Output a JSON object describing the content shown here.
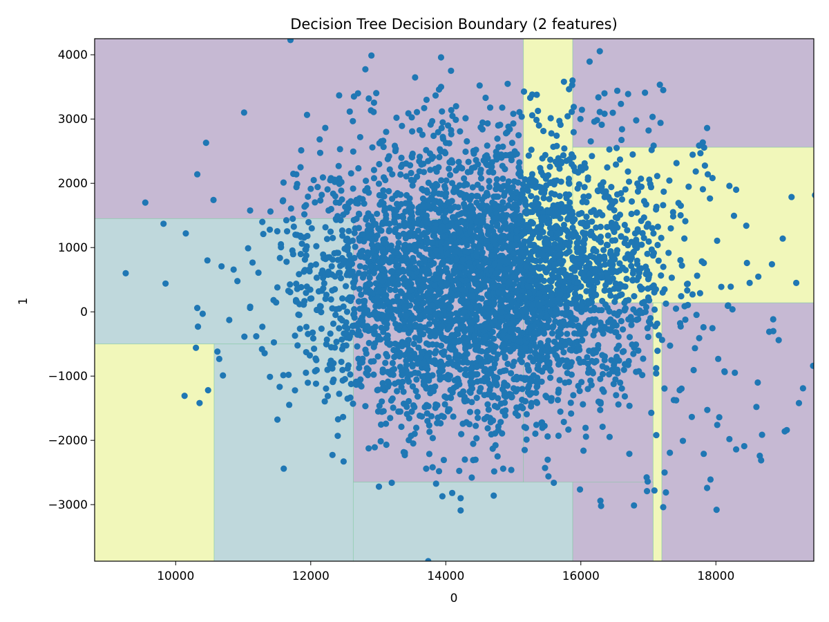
{
  "chart_data": {
    "type": "scatter",
    "title": "Decision Tree Decision Boundary (2 features)",
    "xlabel": "0",
    "ylabel": "1",
    "xlim": [
      8800,
      9450
    ],
    "ylim": [
      -3880,
      4250
    ],
    "x_ticks": [
      10000,
      12000,
      14000,
      16000,
      18000
    ],
    "x_tick_labels": [
      "10000",
      "12000",
      "14000",
      "16000",
      "18000"
    ],
    "y_ticks": [
      -3000,
      -2000,
      -1000,
      0,
      1000,
      2000,
      3000,
      4000
    ],
    "y_tick_labels": [
      "−3000",
      "−2000",
      "−1000",
      "0",
      "1000",
      "2000",
      "3000",
      "4000"
    ],
    "grid": false,
    "legend": "none",
    "colors": {
      "class_0": "#c6b9d3",
      "class_1": "#bfd8dc",
      "class_2": "#f1f7ba",
      "boundary": "#7fc8a0",
      "points": "#1f77b4"
    },
    "regions": [
      {
        "class": 0,
        "x": [
          8800,
          15150
        ],
        "y": [
          1450,
          4250
        ]
      },
      {
        "class": 2,
        "x": [
          15150,
          15880
        ],
        "y": [
          1450,
          4250
        ]
      },
      {
        "class": 0,
        "x": [
          15880,
          19450
        ],
        "y": [
          2560,
          4250
        ]
      },
      {
        "class": 2,
        "x": [
          15880,
          19450
        ],
        "y": [
          140,
          2560
        ]
      },
      {
        "class": 2,
        "x": [
          15150,
          15880
        ],
        "y": [
          140,
          1450
        ]
      },
      {
        "class": 1,
        "x": [
          8800,
          12630
        ],
        "y": [
          -500,
          1450
        ]
      },
      {
        "class": 0,
        "x": [
          12630,
          15150
        ],
        "y": [
          -2650,
          1450
        ]
      },
      {
        "class": 0,
        "x": [
          15150,
          17070
        ],
        "y": [
          -3880,
          140
        ]
      },
      {
        "class": 2,
        "x": [
          17070,
          17200
        ],
        "y": [
          -3880,
          140
        ]
      },
      {
        "class": 0,
        "x": [
          17200,
          19450
        ],
        "y": [
          -3880,
          140
        ]
      },
      {
        "class": 2,
        "x": [
          8800,
          10570
        ],
        "y": [
          -3880,
          -500
        ]
      },
      {
        "class": 1,
        "x": [
          10570,
          12630
        ],
        "y": [
          -3880,
          -500
        ]
      },
      {
        "class": 1,
        "x": [
          12630,
          15880
        ],
        "y": [
          -3880,
          -2650
        ]
      },
      {
        "class": 0,
        "x": [
          15880,
          17070
        ],
        "y": [
          -3880,
          -2650
        ]
      }
    ],
    "cluster": {
      "count": 4200,
      "mean_x": 14550,
      "mean_y": 480,
      "std_x": 1300,
      "std_y": 1050
    },
    "points": [
      [
        9260,
        600
      ],
      [
        9550,
        1700
      ],
      [
        9820,
        1370
      ],
      [
        9850,
        440
      ],
      [
        10150,
        1220
      ],
      [
        10300,
        -560
      ],
      [
        10320,
        2140
      ],
      [
        10330,
        -230
      ],
      [
        10450,
        2630
      ],
      [
        10470,
        800
      ],
      [
        10480,
        -1220
      ],
      [
        10560,
        1740
      ],
      [
        10700,
        -990
      ],
      [
        10320,
        60
      ],
      [
        10400,
        -30
      ],
      [
        11700,
        4230
      ],
      [
        13930,
        3960
      ],
      [
        12860,
        3320
      ],
      [
        12700,
        3400
      ],
      [
        13900,
        3460
      ],
      [
        13930,
        3500
      ],
      [
        13680,
        3170
      ],
      [
        13270,
        3020
      ],
      [
        15250,
        3330
      ],
      [
        15280,
        3380
      ],
      [
        15750,
        3580
      ],
      [
        15380,
        2900
      ],
      [
        15000,
        2930
      ],
      [
        16350,
        3400
      ],
      [
        16540,
        3440
      ],
      [
        16700,
        3390
      ],
      [
        16950,
        3410
      ],
      [
        17220,
        3450
      ],
      [
        16820,
        2980
      ],
      [
        17180,
        2940
      ],
      [
        17870,
        2860
      ],
      [
        16280,
        3110
      ],
      [
        16200,
        2960
      ],
      [
        18450,
        1340
      ],
      [
        18990,
        1140
      ],
      [
        18830,
        740
      ],
      [
        19190,
        450
      ],
      [
        18460,
        760
      ],
      [
        18500,
        450
      ],
      [
        18200,
        1960
      ],
      [
        18300,
        1900
      ],
      [
        17880,
        2140
      ],
      [
        19440,
        -840
      ],
      [
        19290,
        -1190
      ],
      [
        19230,
        -1420
      ],
      [
        19050,
        -1840
      ],
      [
        19020,
        -1860
      ],
      [
        18850,
        -300
      ],
      [
        18790,
        -310
      ],
      [
        18930,
        -440
      ],
      [
        18620,
        -1100
      ],
      [
        18600,
        -1480
      ],
      [
        18650,
        -2240
      ],
      [
        18670,
        -2310
      ],
      [
        18420,
        -2090
      ],
      [
        18300,
        -2140
      ],
      [
        18200,
        -1980
      ],
      [
        18050,
        -1640
      ],
      [
        18020,
        -1760
      ],
      [
        17920,
        -2610
      ],
      [
        17820,
        -2210
      ],
      [
        17870,
        -2740
      ],
      [
        18010,
        -3080
      ],
      [
        17240,
        -2500
      ],
      [
        17260,
        -2810
      ],
      [
        17220,
        -3040
      ],
      [
        16980,
        -2790
      ],
      [
        16990,
        -2640
      ],
      [
        17090,
        -2780
      ],
      [
        16290,
        -2940
      ],
      [
        16300,
        -3020
      ],
      [
        15600,
        -2660
      ],
      [
        15520,
        -2560
      ],
      [
        14970,
        -2460
      ],
      [
        14850,
        -2440
      ],
      [
        13900,
        -2480
      ],
      [
        13710,
        -2440
      ],
      [
        13200,
        -2660
      ],
      [
        13010,
        -2720
      ],
      [
        14220,
        -2900
      ],
      [
        14220,
        -3090
      ],
      [
        13950,
        -2870
      ],
      [
        14710,
        -2860
      ],
      [
        13740,
        -3880
      ],
      [
        12400,
        -1930
      ]
    ]
  }
}
